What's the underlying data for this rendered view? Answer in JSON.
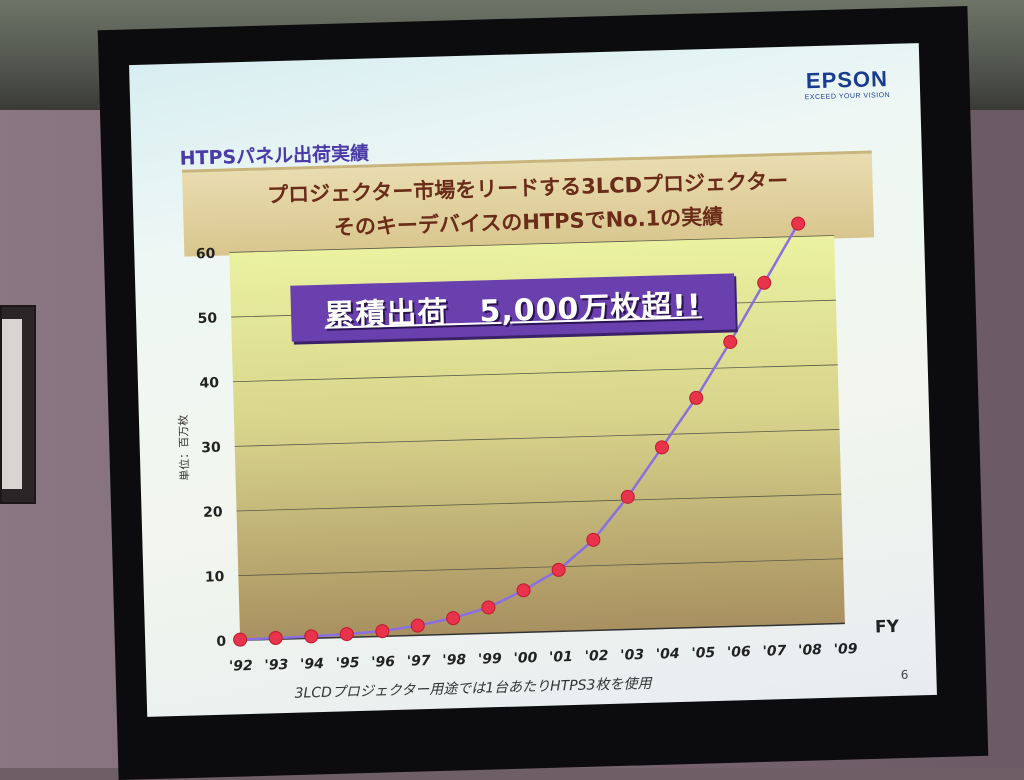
{
  "logo": {
    "name": "EPSON",
    "tagline": "EXCEED YOUR VISION"
  },
  "slide": {
    "title": "HTPSパネル出荷実績",
    "subtitle_lines": [
      "プロジェクター市場をリードする3LCDプロジェクター",
      "そのキーデバイスのHTPSでNo.1の実績"
    ],
    "banner": "累積出荷　5,000万枚超!!",
    "footnote": "3LCDプロジェクター用途では1台あたりHTPS3枚を使用",
    "page_number": "6"
  },
  "colors": {
    "line": "#8a6fe0",
    "marker": "#e8344a",
    "banner": "#6a3fae",
    "title": "#4a3aa8",
    "subtitle_text": "#6a2c18"
  },
  "chart_data": {
    "type": "line",
    "ylabel": "単位：百万枚",
    "xlabel": "FY",
    "ylim": [
      0,
      60
    ],
    "yticks": [
      0,
      10,
      20,
      30,
      40,
      50,
      60
    ],
    "grid": true,
    "categories": [
      "'92",
      "'93",
      "'94",
      "'95",
      "'96",
      "'97",
      "'98",
      "'99",
      "'00",
      "'01",
      "'02",
      "'03",
      "'04",
      "'05",
      "'06",
      "'07",
      "'08",
      "'09"
    ],
    "series": [
      {
        "values": [
          0.1,
          0.2,
          0.3,
          0.5,
          0.8,
          1.5,
          2.5,
          4,
          6.5,
          9.5,
          14,
          20.5,
          28,
          35.5,
          44,
          53,
          62,
          null
        ]
      }
    ]
  }
}
